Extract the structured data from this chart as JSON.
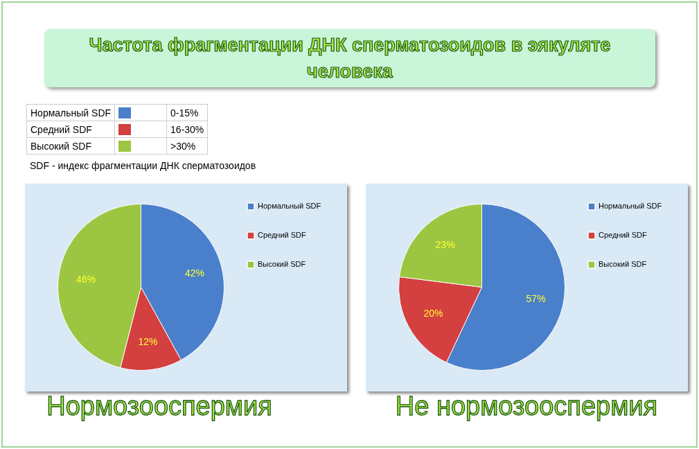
{
  "chart_data": [
    {
      "type": "pie",
      "title": "Частота фрагментации ДНК сперматозоидов в эякуляте человека",
      "xlabel": "Нормозооспермия",
      "categories": [
        "Нормальный SDF",
        "Средний SDF",
        "Высокий SDF"
      ],
      "values": [
        42,
        12,
        46
      ],
      "value_labels": [
        "42%",
        "12%",
        "46%"
      ],
      "colors": [
        "#4a7fcb",
        "#d43f3f",
        "#9cc641"
      ],
      "legend": "right",
      "annotations": [
        "0-15%",
        "16-30%",
        ">30%",
        "SDF - индекс фрагментации ДНК сперматозоидов"
      ]
    },
    {
      "type": "pie",
      "xlabel": "Не нормозооспермия",
      "categories": [
        "Нормальный SDF",
        "Средний SDF",
        "Высокий SDF"
      ],
      "values": [
        57,
        20,
        23
      ],
      "value_labels": [
        "57%",
        "20%",
        "23%"
      ],
      "colors": [
        "#4a7fcb",
        "#d43f3f",
        "#9cc641"
      ],
      "legend": "right"
    }
  ]
}
